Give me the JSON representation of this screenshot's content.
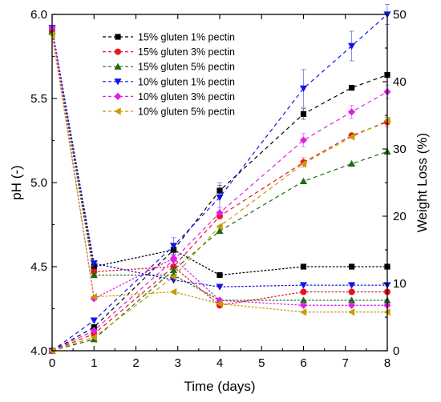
{
  "chart_data": {
    "type": "line",
    "title": "",
    "xlabel": "Time (days)",
    "ylabel_left": "pH (-)",
    "ylabel_right": "Weight Loss (%)",
    "xlim": [
      0,
      8
    ],
    "ylim_left": [
      4.0,
      6.0
    ],
    "ylim_right": [
      0,
      50
    ],
    "x_ticks": [
      0,
      1,
      2,
      3,
      4,
      5,
      6,
      7,
      8
    ],
    "y_ticks_left": [
      4.0,
      4.5,
      5.0,
      5.5,
      6.0
    ],
    "y_ticks_right": [
      0,
      10,
      20,
      30,
      40,
      50
    ],
    "legend_position": "top-left",
    "series": [
      {
        "name": "15% gluten 1% pectin",
        "color": "#000000",
        "marker": "square",
        "x": [
          0,
          1,
          2.9,
          4,
          6,
          7.15,
          8
        ],
        "ph": [
          5.9,
          4.5,
          4.6,
          4.45,
          4.5,
          4.5,
          4.5
        ],
        "weight_loss": [
          0,
          3.5,
          15.0,
          23.8,
          35.2,
          39.1,
          41.0
        ],
        "weight_loss_error": [
          0.3,
          0.5,
          0.8,
          0.8,
          0.8,
          0.6,
          0.6
        ]
      },
      {
        "name": "15% gluten 3% pectin",
        "color": "#e8131d",
        "marker": "circle",
        "x": [
          0,
          1,
          2.9,
          4,
          6,
          7.15,
          8
        ],
        "ph": [
          5.9,
          4.47,
          4.5,
          4.27,
          4.35,
          4.35,
          4.35
        ],
        "weight_loss": [
          0,
          2.5,
          12.5,
          20.0,
          28.0,
          32.0,
          34.0
        ],
        "weight_loss_error": [
          0.3,
          0.5,
          0.5,
          0.6,
          0.7,
          0.6,
          0.7
        ]
      },
      {
        "name": "15% gluten 5% pectin",
        "color": "#1d6b12",
        "marker": "triangle-up",
        "x": [
          0,
          1,
          2.9,
          4,
          6,
          7.15,
          8
        ],
        "ph": [
          5.9,
          4.45,
          4.45,
          4.3,
          4.3,
          4.3,
          4.3
        ],
        "weight_loss": [
          0,
          1.7,
          12.0,
          17.8,
          25.2,
          27.8,
          29.6
        ],
        "weight_loss_error": [
          0.3,
          0.4,
          0.5,
          0.6,
          0.6,
          0.6,
          0.6
        ]
      },
      {
        "name": "10% gluten 1% pectin",
        "color": "#1414e6",
        "marker": "triangle-down",
        "x": [
          0,
          1,
          2.9,
          4,
          6,
          7.15,
          8
        ],
        "ph": [
          5.92,
          4.52,
          4.42,
          4.38,
          4.39,
          4.39,
          4.39
        ],
        "weight_loss": [
          0,
          4.5,
          15.6,
          22.8,
          39.0,
          45.3,
          50.0
        ],
        "weight_loss_error": [
          0.3,
          0.5,
          1.2,
          2.2,
          2.8,
          2.2,
          1.5
        ]
      },
      {
        "name": "10% gluten 3% pectin",
        "color": "#e11ee6",
        "marker": "diamond",
        "x": [
          0,
          1,
          2.9,
          4,
          6,
          7.15,
          8
        ],
        "ph": [
          5.92,
          4.31,
          4.55,
          4.3,
          4.27,
          4.27,
          4.27
        ],
        "weight_loss": [
          0,
          3.0,
          13.5,
          20.5,
          31.3,
          35.5,
          38.5
        ],
        "weight_loss_error": [
          0.3,
          0.5,
          0.8,
          0.8,
          1.0,
          1.0,
          1.0
        ]
      },
      {
        "name": "10% gluten 5% pectin",
        "color": "#c89b00",
        "marker": "triangle-left",
        "x": [
          0,
          1,
          2.9,
          4,
          6,
          7.15,
          8
        ],
        "ph": [
          5.88,
          4.32,
          4.35,
          4.28,
          4.23,
          4.23,
          4.23
        ],
        "weight_loss": [
          0,
          2.0,
          11.0,
          18.5,
          27.8,
          31.8,
          34.2
        ],
        "weight_loss_error": [
          0.3,
          0.4,
          0.5,
          0.6,
          0.6,
          0.6,
          0.6
        ]
      }
    ]
  }
}
